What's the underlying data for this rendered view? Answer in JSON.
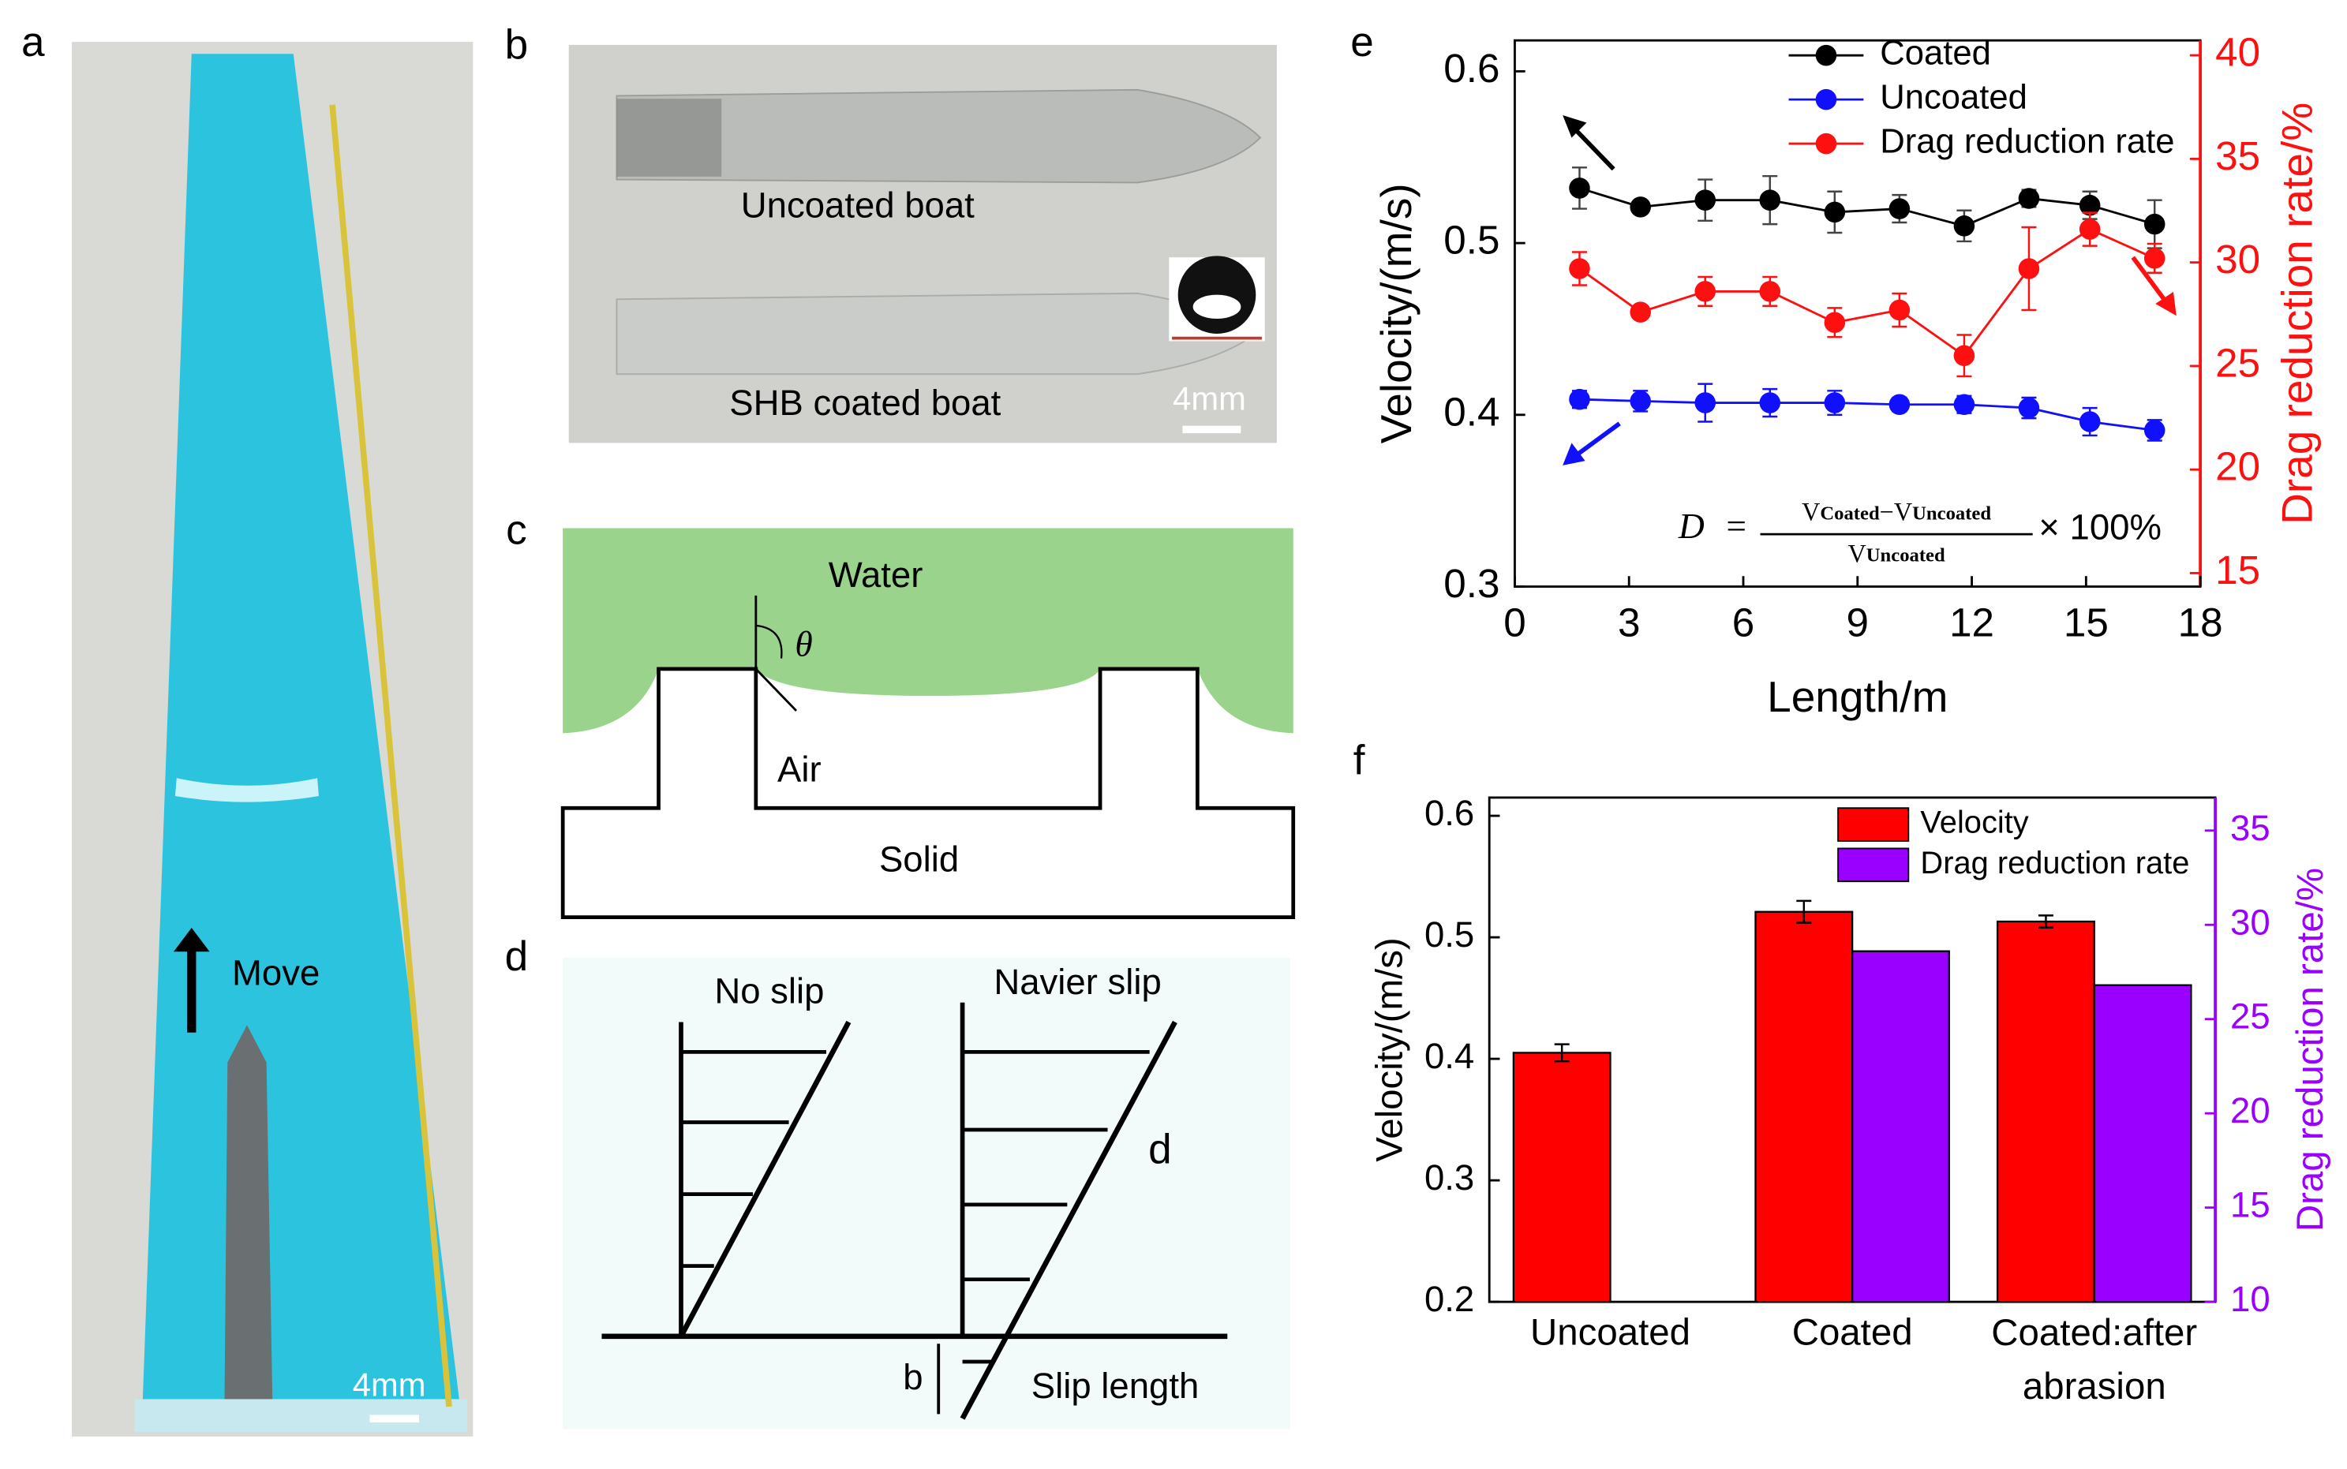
{
  "panel_labels": [
    "a",
    "b",
    "c",
    "d",
    "e",
    "f"
  ],
  "panel_a": {
    "move": "Move",
    "scale": "4mm"
  },
  "panel_b": {
    "uncoated": "Uncoated boat",
    "coated": "SHB coated boat",
    "scale": "4mm"
  },
  "panel_c": {
    "water": "Water",
    "angle": "θ",
    "air": "Air",
    "solid": "Solid"
  },
  "panel_d": {
    "no_slip": "No slip",
    "navier": "Navier slip",
    "d": "d",
    "b": "b",
    "slip_length": "Slip length"
  },
  "chart_data": [
    {
      "type": "line",
      "xlabel": "Length/m",
      "ylabel": "Velocity/(m/s)",
      "y2label": "Drag reduction rate/%",
      "x": [
        1.7,
        3.3,
        5.0,
        6.7,
        8.4,
        10.1,
        11.8,
        13.5,
        15.1,
        16.8
      ],
      "series": [
        {
          "name": "Coated",
          "color": "#000000",
          "values": [
            0.532,
            0.521,
            0.525,
            0.525,
            0.518,
            0.52,
            0.51,
            0.526,
            0.522,
            0.511
          ],
          "errors": [
            0.012,
            0.003,
            0.012,
            0.014,
            0.012,
            0.008,
            0.009,
            0.005,
            0.008,
            0.014
          ]
        },
        {
          "name": "Uncoated",
          "color": "#1010ff",
          "values": [
            0.409,
            0.408,
            0.407,
            0.407,
            0.407,
            0.406,
            0.406,
            0.404,
            0.396,
            0.391
          ],
          "errors": [
            0.005,
            0.006,
            0.011,
            0.008,
            0.007,
            0.004,
            0.005,
            0.006,
            0.008,
            0.006
          ]
        },
        {
          "name": "Drag reduction rate",
          "color": "#ff1010",
          "axis": "y2",
          "values": [
            29.7,
            27.6,
            28.6,
            28.6,
            27.1,
            27.7,
            25.5,
            29.7,
            31.6,
            30.2
          ],
          "errors": [
            0.8,
            0.3,
            0.7,
            0.7,
            0.7,
            0.8,
            1.0,
            2.0,
            0.8,
            0.7
          ]
        }
      ],
      "xlim": [
        0,
        18
      ],
      "xticks": [
        0,
        3,
        6,
        9,
        12,
        15,
        18
      ],
      "ylim": [
        0.3,
        0.618
      ],
      "yticks": [
        0.3,
        0.4,
        0.5,
        0.6
      ],
      "y2lim": [
        14.35,
        40.72
      ],
      "y2ticks": [
        15,
        20,
        25,
        30,
        35,
        40
      ],
      "legend": "upper center",
      "formula": {
        "lhs": "D",
        "eq": "=",
        "v": "V",
        "coated": "Coated",
        "minus": "−",
        "uncoated": "Uncoated",
        "times": "× 100%"
      }
    },
    {
      "type": "bar",
      "ylabel": "Velocity/(m/s)",
      "y2label": "Drag reduction rate/%",
      "categories": [
        "Uncoated",
        "Coated",
        "Coated:after abrasion"
      ],
      "series": [
        {
          "name": "Velocity",
          "color": "#ff0000",
          "values": [
            0.405,
            0.521,
            0.513
          ],
          "errors": [
            0.007,
            0.009,
            0.005
          ]
        },
        {
          "name": "Drag reduction rate",
          "color": "#9900ff",
          "axis": "y2",
          "values": [
            null,
            28.6,
            26.8
          ]
        }
      ],
      "ylim": [
        0.2,
        0.615
      ],
      "yticks": [
        0.2,
        0.3,
        0.4,
        0.5,
        0.6
      ],
      "y2lim": [
        10,
        36.75
      ],
      "y2ticks": [
        10,
        15,
        20,
        25,
        30,
        35
      ],
      "legend": "upper right"
    }
  ]
}
